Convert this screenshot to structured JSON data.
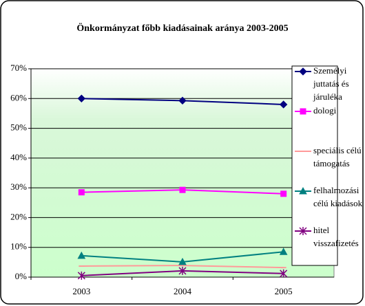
{
  "chart_data": {
    "type": "line",
    "title": "Önkormányzat főbb kiadásainak aránya 2003-2005",
    "categories": [
      "2003",
      "2004",
      "2005"
    ],
    "series": [
      {
        "name": "Személyi juttatás és járuléka",
        "color": "#000080",
        "marker": "diamond",
        "values": [
          60,
          59.3,
          58
        ]
      },
      {
        "name": "dologi",
        "color": "#ff00ff",
        "marker": "square",
        "values": [
          28.5,
          29.3,
          28
        ]
      },
      {
        "name": "speciális célú támogatás",
        "color": "#ff9999",
        "marker": "dash",
        "values": [
          3.7,
          3.9,
          3.2
        ]
      },
      {
        "name": "felhalmozási célú kiadások",
        "color": "#008080",
        "marker": "triangle",
        "values": [
          7.2,
          5.1,
          8.5
        ]
      },
      {
        "name": "hitel visszafizetés",
        "color": "#800080",
        "marker": "star",
        "values": [
          0.5,
          2.1,
          1.2
        ]
      }
    ],
    "ylim": [
      0,
      70
    ],
    "yticks": [
      {
        "value": 0,
        "label": "0%"
      },
      {
        "value": 10,
        "label": "10%"
      },
      {
        "value": 20,
        "label": "20%"
      },
      {
        "value": 30,
        "label": "30%"
      },
      {
        "value": 40,
        "label": "40%"
      },
      {
        "value": 50,
        "label": "50%"
      },
      {
        "value": 60,
        "label": "60%"
      },
      {
        "value": 70,
        "label": "70%"
      }
    ],
    "grid": true,
    "legend": "right"
  }
}
